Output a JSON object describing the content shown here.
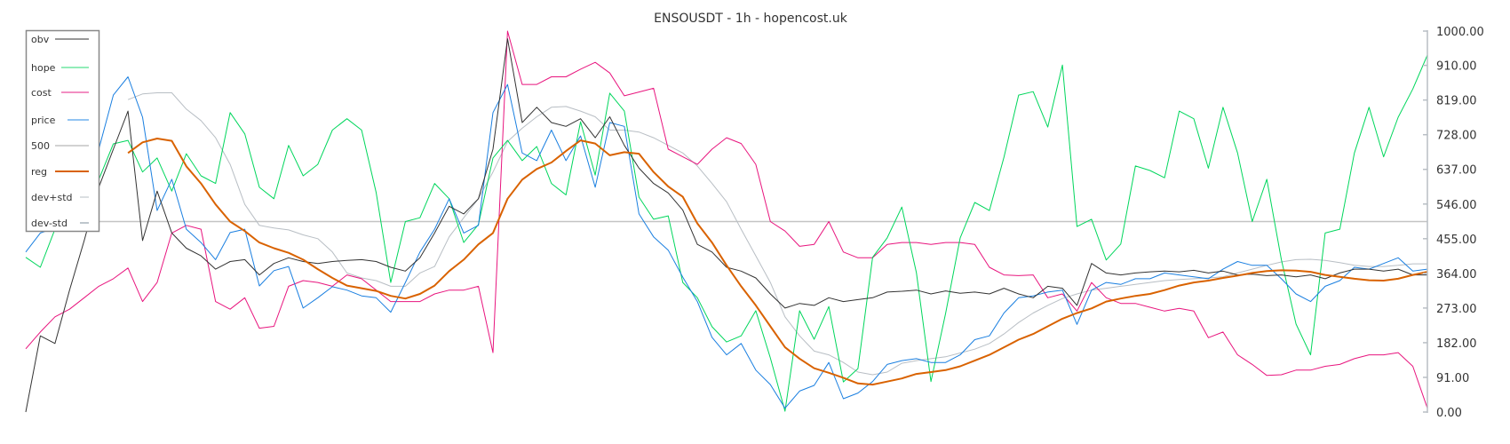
{
  "chart_data": {
    "type": "line",
    "title": "ENSOUSDT - 1h - hopencost.uk",
    "ylim": [
      0,
      1000
    ],
    "y_ticks": [
      "1000.00",
      "910.00",
      "819.00",
      "728.00",
      "637.00",
      "546.00",
      "455.00",
      "364.00",
      "273.00",
      "182.00",
      "91.00",
      "0.00"
    ],
    "y_axis_position": "right",
    "grid": false,
    "legend_position": "top-left",
    "series": [
      {
        "name": "obv",
        "color": "#333333",
        "legend_color": "#777777",
        "width": 1,
        "values": [
          0,
          200,
          180,
          320,
          450,
          590,
          690,
          790,
          450,
          580,
          470,
          430,
          410,
          375,
          395,
          400,
          360,
          390,
          405,
          395,
          390,
          395,
          398,
          400,
          395,
          380,
          370,
          405,
          470,
          540,
          520,
          560,
          690,
          980,
          760,
          800,
          760,
          750,
          770,
          720,
          775,
          700,
          640,
          600,
          575,
          530,
          440,
          420,
          380,
          370,
          352,
          310,
          273,
          285,
          280,
          300,
          290,
          295,
          300,
          315,
          317,
          320,
          310,
          318,
          312,
          315,
          310,
          325,
          310,
          300,
          330,
          325,
          280,
          390,
          365,
          360,
          365,
          368,
          370,
          368,
          372,
          365,
          370,
          360,
          362,
          358,
          360,
          355,
          360,
          350,
          365,
          375,
          375,
          370,
          375,
          360,
          360
        ]
      },
      {
        "name": "hope",
        "color": "#00d65c",
        "legend_color": "#6ee6a0",
        "width": 1,
        "values": [
          406,
          380,
          480,
          540,
          580,
          610,
          704,
          713,
          630,
          667,
          580,
          678,
          620,
          600,
          786,
          730,
          590,
          560,
          700,
          620,
          650,
          740,
          770,
          740,
          576,
          340,
          500,
          510,
          600,
          560,
          445,
          492,
          667,
          713,
          660,
          697,
          600,
          570,
          762,
          622,
          837,
          790,
          564,
          506,
          515,
          340,
          300,
          224,
          184,
          200,
          266,
          142,
          2,
          266,
          191,
          277,
          79,
          114,
          406,
          457,
          538,
          366,
          80,
          259,
          457,
          550,
          529,
          669,
          832,
          841,
          748,
          911,
          487,
          506,
          399,
          441,
          646,
          634,
          615,
          790,
          770,
          640,
          800,
          680,
          500,
          611,
          400,
          231,
          150,
          470,
          480,
          680,
          800,
          670,
          774,
          848,
          937
        ]
      },
      {
        "name": "cost",
        "color": "#e8157e",
        "legend_color": "#ee6aae",
        "width": 1,
        "values": [
          166,
          210,
          250,
          270,
          300,
          330,
          350,
          378,
          290,
          340,
          470,
          490,
          480,
          290,
          270,
          300,
          220,
          225,
          330,
          345,
          340,
          330,
          360,
          350,
          320,
          290,
          290,
          290,
          310,
          320,
          320,
          330,
          156,
          1000,
          860,
          860,
          880,
          880,
          900,
          918,
          890,
          830,
          840,
          850,
          690,
          670,
          650,
          690,
          720,
          705,
          650,
          500,
          475,
          435,
          440,
          500,
          420,
          405,
          405,
          440,
          445,
          445,
          440,
          445,
          445,
          440,
          380,
          360,
          358,
          360,
          300,
          310,
          265,
          340,
          300,
          285,
          285,
          275,
          265,
          272,
          265,
          195,
          210,
          150,
          125,
          96,
          98,
          110,
          110,
          120,
          125,
          140,
          150,
          150,
          156,
          120,
          10
        ]
      },
      {
        "name": "price",
        "color": "#1a7fe0",
        "legend_color": "#6fb0ee",
        "width": 1,
        "values": [
          420,
          470,
          483,
          560,
          640,
          690,
          832,
          880,
          774,
          529,
          611,
          480,
          445,
          400,
          471,
          480,
          331,
          371,
          382,
          273,
          300,
          329,
          320,
          305,
          300,
          262,
          340,
          420,
          480,
          560,
          470,
          490,
          786,
          860,
          680,
          660,
          740,
          660,
          725,
          590,
          760,
          750,
          520,
          460,
          425,
          354,
          290,
          196,
          150,
          180,
          110,
          72,
          10,
          55,
          70,
          130,
          35,
          50,
          80,
          125,
          135,
          140,
          130,
          130,
          150,
          190,
          200,
          260,
          300,
          305,
          315,
          320,
          230,
          320,
          340,
          335,
          350,
          350,
          365,
          360,
          355,
          350,
          375,
          395,
          385,
          385,
          350,
          310,
          290,
          330,
          345,
          380,
          375,
          390,
          405,
          370,
          375
        ]
      },
      {
        "name": "500",
        "color": "#c4c4c4",
        "legend_color": "#c4c4c4",
        "width": 1.5,
        "values": [
          500,
          500
        ]
      },
      {
        "name": "reg",
        "color": "#d96200",
        "legend_color": "#d96200",
        "width": 2,
        "values": [
          null,
          null,
          null,
          null,
          null,
          null,
          null,
          680,
          708,
          718,
          712,
          645,
          600,
          545,
          500,
          475,
          445,
          430,
          418,
          400,
          375,
          352,
          332,
          325,
          318,
          305,
          298,
          310,
          332,
          370,
          400,
          440,
          470,
          560,
          610,
          638,
          655,
          685,
          713,
          705,
          674,
          682,
          678,
          630,
          592,
          565,
          495,
          445,
          385,
          330,
          280,
          225,
          170,
          140,
          115,
          103,
          90,
          75,
          72,
          80,
          88,
          100,
          105,
          110,
          120,
          135,
          150,
          170,
          190,
          205,
          225,
          245,
          260,
          272,
          290,
          298,
          305,
          310,
          320,
          332,
          340,
          345,
          352,
          358,
          365,
          370,
          372,
          371,
          368,
          360,
          355,
          350,
          346,
          345,
          350,
          360,
          368
        ]
      },
      {
        "name": "dev+std",
        "color": "#b8bec4",
        "legend_color": "#cfd4d8",
        "width": 1,
        "values": [
          null,
          null,
          null,
          null,
          null,
          null,
          null,
          820,
          835,
          838,
          838,
          795,
          765,
          720,
          650,
          545,
          490,
          483,
          478,
          465,
          455,
          420,
          365,
          352,
          345,
          330,
          330,
          365,
          382,
          460,
          510,
          560,
          630,
          710,
          745,
          775,
          800,
          802,
          790,
          775,
          740,
          740,
          735,
          720,
          700,
          680,
          646,
          600,
          552,
          480,
          410,
          340,
          250,
          200,
          160,
          150,
          130,
          105,
          98,
          105,
          128,
          135,
          140,
          145,
          155,
          165,
          180,
          205,
          235,
          260,
          280,
          298,
          310,
          320,
          325,
          330,
          335,
          340,
          345,
          348,
          350,
          352,
          355,
          365,
          375,
          385,
          394,
          400,
          401,
          398,
          392,
          385,
          382,
          382,
          385,
          389,
          389
        ]
      },
      {
        "name": "dev-std",
        "color": "#7e8a96",
        "legend_color": "#a8b2ba",
        "width": 1,
        "values": [
          null,
          null,
          null,
          null,
          null,
          null,
          null,
          555,
          580,
          598,
          590,
          540,
          500,
          440,
          412,
          405,
          400,
          385,
          365,
          340,
          320,
          298,
          294,
          295,
          292,
          285,
          280,
          280,
          272,
          266,
          280,
          300,
          340,
          385,
          440,
          480,
          515,
          545,
          575,
          640,
          620,
          612,
          612,
          600,
          570,
          530,
          490,
          445,
          390,
          335,
          280,
          215,
          155,
          110,
          75,
          60,
          50,
          45,
          46,
          52,
          56,
          62,
          75,
          90,
          100,
          108,
          115,
          122,
          130,
          145,
          170,
          195,
          215,
          235,
          255,
          262,
          268,
          275,
          290,
          315,
          322,
          330,
          340,
          348,
          355,
          360,
          356,
          345,
          330,
          318,
          312,
          310,
          310,
          312,
          318,
          335,
          347
        ]
      }
    ]
  }
}
